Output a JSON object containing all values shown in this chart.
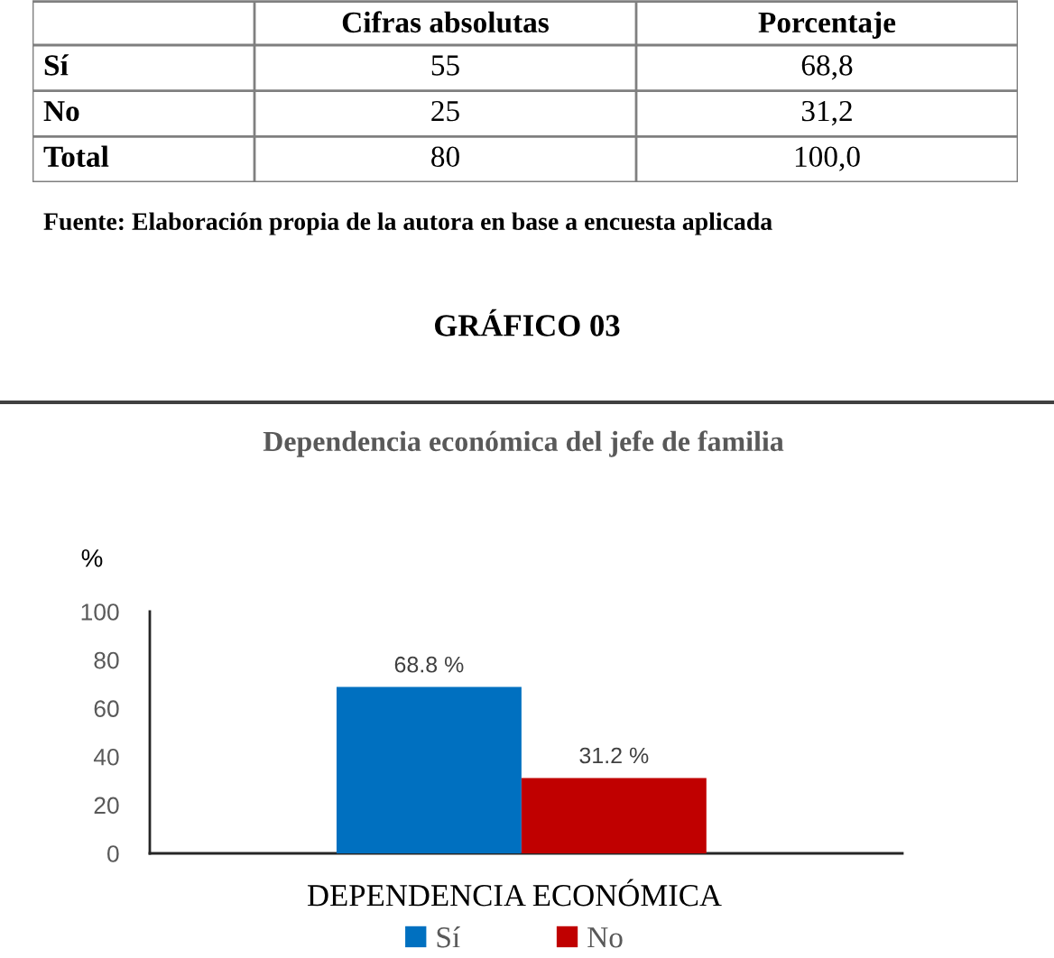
{
  "chart_data": [
    {
      "type": "other",
      "categories": [
        "Cifras absolutas",
        "Porcentaje"
      ],
      "y_categories": [
        "Sí",
        "No",
        "Total"
      ],
      "cell_labels": [
        [
          "55",
          "68,8"
        ],
        [
          "25",
          "31,2"
        ],
        [
          "80",
          "100,0"
        ]
      ],
      "annotations": [
        "Fuente: Elaboración propia de la autora en base a encuesta aplicada"
      ]
    },
    {
      "type": "bar",
      "title": "GRÁFICO 03",
      "subtitle": "Dependencia económica del jefe de familia",
      "xlabel": "DEPENDENCIA ECONÓMICA",
      "ylabel": "%",
      "categories": [
        null
      ],
      "series": [
        {
          "name": "Sí",
          "color": "#0070c0",
          "values": [
            68.8
          ],
          "value_labels": [
            "68.8 %"
          ]
        },
        {
          "name": "No",
          "color": "#c00000",
          "values": [
            31.2
          ],
          "value_labels": [
            "31.2 %"
          ]
        }
      ],
      "ylim": [
        0,
        100
      ],
      "yticks": [
        0,
        20,
        40,
        60,
        80,
        100
      ],
      "tick_labels": "y",
      "legend": "bottom"
    }
  ]
}
